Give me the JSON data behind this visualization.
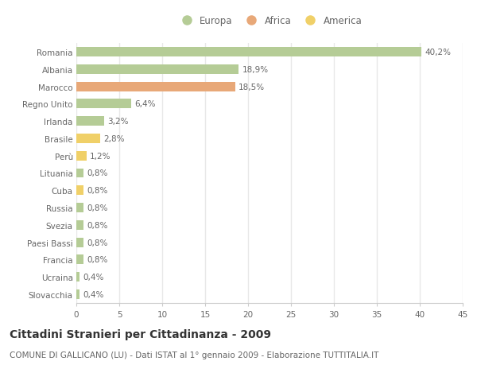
{
  "categories": [
    "Romania",
    "Albania",
    "Marocco",
    "Regno Unito",
    "Irlanda",
    "Brasile",
    "Perù",
    "Lituania",
    "Cuba",
    "Russia",
    "Svezia",
    "Paesi Bassi",
    "Francia",
    "Ucraina",
    "Slovacchia"
  ],
  "values": [
    40.2,
    18.9,
    18.5,
    6.4,
    3.2,
    2.8,
    1.2,
    0.8,
    0.8,
    0.8,
    0.8,
    0.8,
    0.8,
    0.4,
    0.4
  ],
  "continents": [
    "Europa",
    "Europa",
    "Africa",
    "Europa",
    "Europa",
    "America",
    "America",
    "Europa",
    "America",
    "Europa",
    "Europa",
    "Europa",
    "Europa",
    "Europa",
    "Europa"
  ],
  "colors": {
    "Europa": "#b5cc96",
    "Africa": "#e8a878",
    "America": "#f0d068"
  },
  "title1": "Cittadini Stranieri per Cittadinanza - 2009",
  "title2": "COMUNE DI GALLICANO (LU) - Dati ISTAT al 1° gennaio 2009 - Elaborazione TUTTITALIA.IT",
  "xlim": [
    0,
    45
  ],
  "xticks": [
    0,
    5,
    10,
    15,
    20,
    25,
    30,
    35,
    40,
    45
  ],
  "background_color": "#ffffff",
  "grid_color": "#e8e8e8",
  "bar_height": 0.55,
  "label_fontsize": 7.5,
  "tick_fontsize": 7.5,
  "ytick_fontsize": 7.5,
  "title1_fontsize": 10,
  "title2_fontsize": 7.5,
  "text_color": "#666666"
}
